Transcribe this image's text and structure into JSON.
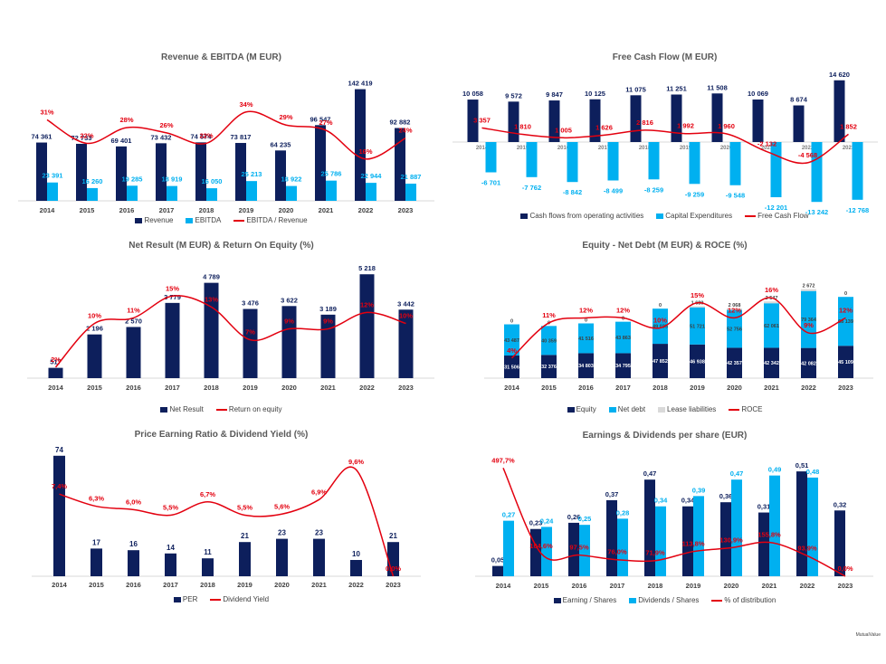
{
  "colors": {
    "navy": "#0d1f5c",
    "light_blue": "#00b0f0",
    "red": "#e3000f",
    "lease_grey": "#d9d9d9",
    "axis": "#d9d9d9",
    "tick_text": "#404040"
  },
  "watermark": "MutualValue",
  "chart_data": [
    {
      "id": "revenue",
      "type": "bar",
      "title": "Revenue & EBITDA (M EUR)",
      "categories": [
        "2014",
        "2015",
        "2016",
        "2017",
        "2018",
        "2019",
        "2020",
        "2021",
        "2022",
        "2023"
      ],
      "series": [
        {
          "name": "Revenue",
          "kind": "bar",
          "color": "#0d1f5c",
          "values": [
            74361,
            72733,
            69401,
            73432,
            74574,
            73817,
            64235,
            96547,
            142419,
            92882
          ],
          "labels": [
            "74 361",
            "72 733",
            "69 401",
            "73 432",
            "74 574",
            "73 817",
            "64 235",
            "96 547",
            "142 419",
            "92 882"
          ]
        },
        {
          "name": "EBITDA",
          "kind": "bar",
          "color": "#00b0f0",
          "values": [
            23391,
            16260,
            19285,
            18919,
            16050,
            25213,
            18922,
            25786,
            22944,
            21887
          ],
          "labels": [
            "23 391",
            "16 260",
            "19 285",
            "18 919",
            "16 050",
            "25 213",
            "18 922",
            "25 786",
            "22 944",
            "21 887"
          ]
        },
        {
          "name": "EBITDA / Revenue",
          "kind": "line",
          "color": "#e3000f",
          "values": [
            31,
            22,
            28,
            26,
            22,
            34,
            29,
            27,
            16,
            24
          ],
          "labels": [
            "31%",
            "22%",
            "28%",
            "26%",
            "22%",
            "34%",
            "29%",
            "27%",
            "16%",
            "24%"
          ]
        }
      ],
      "ylim": [
        0,
        150000
      ],
      "line_ylim": [
        0,
        45
      ],
      "legend": [
        "Revenue",
        "EBITDA",
        "EBITDA / Revenue"
      ],
      "legend_position": "bottom"
    },
    {
      "id": "fcf",
      "type": "bar",
      "title": "Free Cash Flow (M EUR)",
      "categories": [
        "2014",
        "2015",
        "2016",
        "2017",
        "2018",
        "2019",
        "2020",
        "2021",
        "2022",
        "2023"
      ],
      "series": [
        {
          "name": "Cash flows from operating activities",
          "kind": "bar",
          "color": "#0d1f5c",
          "values": [
            10058,
            9572,
            9847,
            10125,
            11075,
            11251,
            11508,
            10069,
            8674,
            14620
          ],
          "labels": [
            "10 058",
            "9 572",
            "9 847",
            "10 125",
            "11 075",
            "11 251",
            "11 508",
            "10 069",
            "8 674",
            "14 620"
          ]
        },
        {
          "name": "Capital Expenditures",
          "kind": "bar",
          "color": "#00b0f0",
          "values": [
            -6701,
            -7762,
            -8842,
            -8499,
            -8259,
            -9259,
            -9548,
            -12201,
            -13242,
            -12768
          ],
          "labels": [
            "-6 701",
            "-7 762",
            "-8 842",
            "-8 499",
            "-8 259",
            "-9 259",
            "-9 548",
            "-12 201",
            "-13 242",
            "-12 768"
          ]
        },
        {
          "name": "Free Cash Flow",
          "kind": "line",
          "color": "#e3000f",
          "values": [
            3357,
            1810,
            1005,
            1626,
            2816,
            1992,
            1960,
            -2132,
            -4568,
            1852
          ],
          "labels": [
            "3 357",
            "1 810",
            "1 005",
            "1 626",
            "2 816",
            "1 992",
            "1 960",
            "-2 132",
            "-4 568",
            "1 852"
          ]
        }
      ],
      "ylim": [
        -14000,
        15000
      ],
      "legend": [
        "Cash flows from operating activities",
        "Capital Expenditures",
        "Free Cash Flow"
      ],
      "legend_position": "bottom"
    },
    {
      "id": "netresult",
      "type": "bar",
      "title": "Net Result (M EUR) & Return On Equity (%)",
      "categories": [
        "2014",
        "2015",
        "2016",
        "2017",
        "2018",
        "2019",
        "2020",
        "2021",
        "2022",
        "2023"
      ],
      "series": [
        {
          "name": "Net Result",
          "kind": "bar",
          "color": "#0d1f5c",
          "values": [
            517,
            2196,
            2570,
            3779,
            4789,
            3476,
            3622,
            3189,
            5218,
            3442
          ],
          "labels": [
            "517",
            "2 196",
            "2 570",
            "3 779",
            "4 789",
            "3 476",
            "3 622",
            "3 189",
            "5 218",
            "3 442"
          ]
        },
        {
          "name": "Return on equity",
          "kind": "line",
          "color": "#e3000f",
          "values": [
            2,
            10,
            11,
            15,
            13,
            7,
            9,
            9,
            12,
            10
          ],
          "labels": [
            "2%",
            "10%",
            "11%",
            "15%",
            "13%",
            "7%",
            "9%",
            "9%",
            "12%",
            "10%"
          ]
        }
      ],
      "ylim": [
        0,
        5500
      ],
      "line_ylim": [
        0,
        20
      ],
      "legend": [
        "Net Result",
        "Return on equity"
      ],
      "legend_position": "bottom"
    },
    {
      "id": "equity",
      "type": "bar",
      "stacked": true,
      "title": "Equity - Net Debt (M EUR) & ROCE (%)",
      "categories": [
        "2014",
        "2015",
        "2016",
        "2017",
        "2018",
        "2019",
        "2020",
        "2021",
        "2022",
        "2023"
      ],
      "series": [
        {
          "name": "Equity",
          "kind": "stack",
          "color": "#0d1f5c",
          "values": [
            31506,
            32376,
            34803,
            34795,
            47852,
            46938,
            42357,
            42342,
            42082,
            45109
          ],
          "labels": [
            "31 506",
            "32 376",
            "34 803",
            "34 795",
            "47 852",
            "46 938",
            "42 357",
            "42 342",
            "42 082",
            "45 109"
          ]
        },
        {
          "name": "Net debt",
          "kind": "stack",
          "color": "#00b0f0",
          "values": [
            43487,
            40359,
            41516,
            43863,
            49035,
            51721,
            52756,
            62061,
            79364,
            68139
          ],
          "labels": [
            "43 487",
            "40 359",
            "41 516",
            "43 863",
            "49 035",
            "51 721",
            "52 756",
            "62 061",
            "79 364",
            "68 139"
          ]
        },
        {
          "name": "Lease liabilities",
          "kind": "stack",
          "color": "#d9d9d9",
          "values": [
            0,
            0,
            0,
            0,
            0,
            1689,
            2068,
            2547,
            2672,
            0
          ],
          "labels": [
            "0",
            "0",
            "0",
            "0",
            "0",
            "1 689",
            "2 068",
            "2 547",
            "2 672",
            "0"
          ]
        },
        {
          "name": "ROCE",
          "kind": "line",
          "color": "#e3000f",
          "values": [
            4,
            11,
            12,
            12,
            10,
            15,
            12,
            16,
            9,
            12
          ],
          "labels": [
            "4%",
            "11%",
            "12%",
            "12%",
            "10%",
            "15%",
            "12%",
            "16%",
            "9%",
            "12%"
          ]
        }
      ],
      "ylim": [
        0,
        140000
      ],
      "line_ylim": [
        0,
        20
      ],
      "legend": [
        "Equity",
        "Net debt",
        "Lease liabilities",
        "ROCE"
      ],
      "legend_position": "bottom"
    },
    {
      "id": "per",
      "type": "bar",
      "title": "Price Earning Ratio & Dividend Yield (%)",
      "categories": [
        "2014",
        "2015",
        "2016",
        "2017",
        "2018",
        "2019",
        "2020",
        "2021",
        "2022",
        "2023"
      ],
      "series": [
        {
          "name": "PER",
          "kind": "bar",
          "color": "#0d1f5c",
          "values": [
            74,
            17,
            16,
            14,
            11,
            21,
            23,
            23,
            10,
            21
          ],
          "labels": [
            "74",
            "17",
            "16",
            "14",
            "11",
            "21",
            "23",
            "23",
            "10",
            "21"
          ]
        },
        {
          "name": "Dividend Yield",
          "kind": "line",
          "color": "#e3000f",
          "values": [
            7.4,
            6.3,
            6.0,
            5.5,
            6.7,
            5.5,
            5.6,
            6.9,
            9.6,
            0.0
          ],
          "labels": [
            "7,4%",
            "6,3%",
            "6,0%",
            "5,5%",
            "6,7%",
            "5,5%",
            "5,6%",
            "6,9%",
            "9,6%",
            "0,0%"
          ]
        }
      ],
      "ylim": [
        0,
        75
      ],
      "line_ylim": [
        0,
        11
      ],
      "legend": [
        "PER",
        "Dividend Yield"
      ],
      "legend_position": "bottom"
    },
    {
      "id": "eps",
      "type": "bar",
      "title": "Earnings & Dividends per share (EUR)",
      "categories": [
        "2014",
        "2015",
        "2016",
        "2017",
        "2018",
        "2019",
        "2020",
        "2021",
        "2022",
        "2023"
      ],
      "series": [
        {
          "name": "Earning / Shares",
          "kind": "bar",
          "color": "#0d1f5c",
          "values": [
            0.05,
            0.23,
            0.26,
            0.37,
            0.47,
            0.34,
            0.36,
            0.31,
            0.51,
            0.32
          ],
          "labels": [
            "0,05",
            "0,23",
            "0,26",
            "0,37",
            "0,47",
            "0,34",
            "0,36",
            "0,31",
            "0,51",
            "0,32"
          ]
        },
        {
          "name": "Dividends / Shares",
          "kind": "bar",
          "color": "#00b0f0",
          "values": [
            0.27,
            0.24,
            0.25,
            0.28,
            0.34,
            0.39,
            0.47,
            0.49,
            0.48,
            null
          ],
          "labels": [
            "0,27",
            "0,24",
            "0,25",
            "0,28",
            "0,34",
            "0,39",
            "0,47",
            "0,49",
            "0,48",
            ""
          ]
        },
        {
          "name": "% of distribution",
          "kind": "line",
          "color": "#e3000f",
          "values": [
            497.7,
            104.6,
            97.5,
            76.0,
            71.9,
            113.8,
            130.9,
            155.8,
            93.9,
            0.0
          ],
          "labels": [
            "497,7%",
            "104,6%",
            "97,5%",
            "76,0%",
            "71,9%",
            "113,8%",
            "130,9%",
            "155,8%",
            "93,9%",
            "0,0%"
          ]
        }
      ],
      "ylim": [
        0,
        0.55
      ],
      "line_ylim": [
        0,
        520
      ],
      "legend": [
        "Earning / Shares",
        "Dividends / Shares",
        "% of distribution"
      ],
      "legend_position": "bottom"
    }
  ]
}
